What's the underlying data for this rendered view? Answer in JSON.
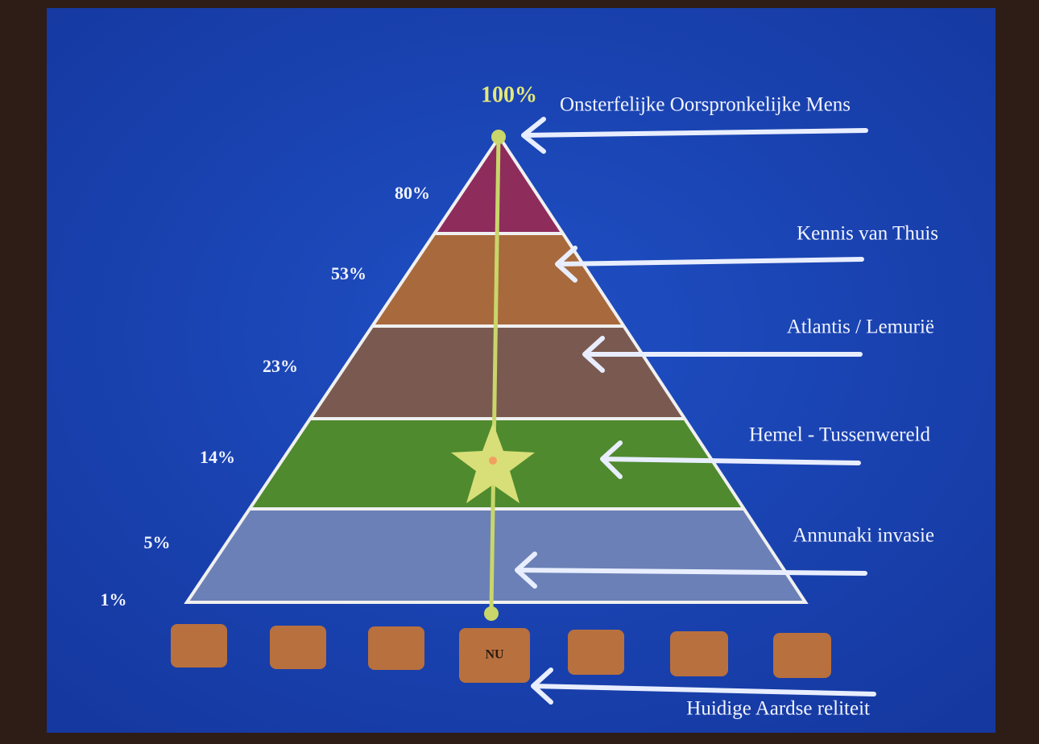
{
  "levels": [
    {
      "percent": "100%",
      "label": "Onsterfelijke Oorspronkelijke Mens"
    },
    {
      "percent": "80%",
      "label": "Kennis van Thuis"
    },
    {
      "percent": "53%",
      "label": "Atlantis / Lemurië"
    },
    {
      "percent": "23%",
      "label": "Hemel - Tussenwereld"
    },
    {
      "percent": "14%",
      "label": "Annunaki invasie"
    },
    {
      "percent": "5%"
    },
    {
      "percent": "1%"
    }
  ],
  "timeline": {
    "now": "NU",
    "label": "Huidige Aardse reliteit"
  }
}
